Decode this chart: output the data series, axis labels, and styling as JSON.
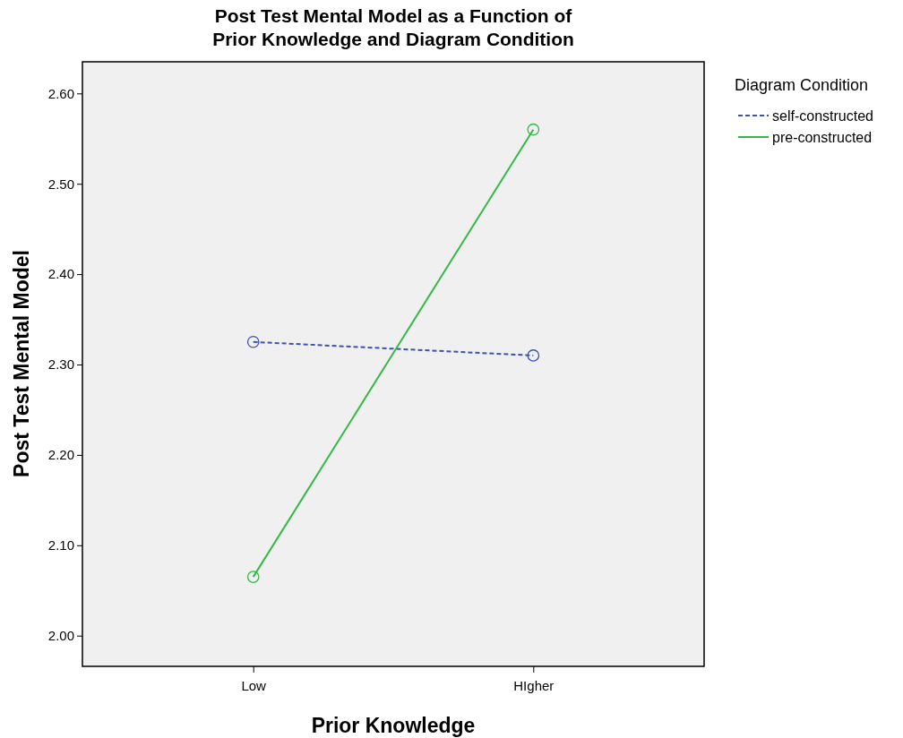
{
  "chart_data": {
    "type": "line",
    "title": "Post Test Mental Model as a Function of\nPrior Knowledge and Diagram Condition",
    "xlabel": "Prior Knowledge",
    "ylabel": "Post Test Mental Model",
    "legend_title": "Diagram Condition",
    "categories": [
      "Low",
      "HIgher"
    ],
    "series": [
      {
        "name": "self-constructed",
        "color": "#3f51b1",
        "values": [
          2.325,
          2.31
        ],
        "line_style": "dashed"
      },
      {
        "name": "pre-constructed",
        "color": "#34b846",
        "values": [
          2.065,
          2.56
        ],
        "line_style": "solid"
      }
    ],
    "ylim": [
      1.966,
      2.635
    ],
    "yticks": [
      {
        "value": 2,
        "label": "2.00"
      },
      {
        "value": 2.1,
        "label": "2.10"
      },
      {
        "value": 2.2,
        "label": "2.20"
      },
      {
        "value": 2.3,
        "label": "2.30"
      },
      {
        "value": 2.4,
        "label": "2.40"
      },
      {
        "value": 2.5,
        "label": "2.50"
      },
      {
        "value": 2.6,
        "label": "2.60"
      }
    ],
    "grid": false,
    "legend": "top right",
    "marker": "circle"
  }
}
